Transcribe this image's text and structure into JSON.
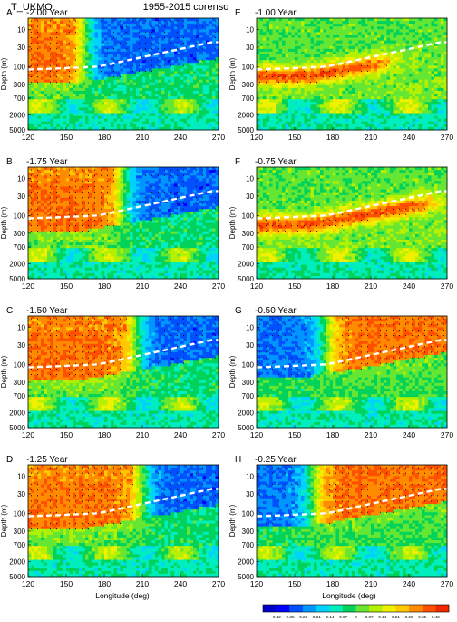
{
  "header": {
    "left": "T_UKMO",
    "center": "1955-2015 corenso"
  },
  "chart_data": {
    "type": "heatmap",
    "panels": [
      {
        "letter": "A",
        "label": "-2.00 Year",
        "warm": "west",
        "front": 165
      },
      {
        "letter": "B",
        "label": "-1.75 Year",
        "warm": "west",
        "front": 195
      },
      {
        "letter": "C",
        "label": "-1.50 Year",
        "warm": "west",
        "front": 205
      },
      {
        "letter": "D",
        "label": "-1.25 Year",
        "warm": "west",
        "front": 210
      },
      {
        "letter": "E",
        "label": "-1.00 Year",
        "warm": "thermocline",
        "front": 225
      },
      {
        "letter": "F",
        "label": "-0.75 Year",
        "warm": "thermocline",
        "front": 260
      },
      {
        "letter": "G",
        "label": "-0.50 Year",
        "warm": "east",
        "front": 175
      },
      {
        "letter": "H",
        "label": "-0.25 Year",
        "warm": "east",
        "front": 165
      }
    ],
    "x_ticks": [
      "120",
      "150",
      "180",
      "210",
      "240",
      "270"
    ],
    "x_values": [
      120,
      150,
      180,
      210,
      240,
      270
    ],
    "xlim": [
      120,
      270
    ],
    "y_ticks": [
      "10",
      "30",
      "100",
      "300",
      "700",
      "2000",
      "5000"
    ],
    "y_values": [
      10,
      30,
      100,
      300,
      700,
      2000,
      5000
    ],
    "xlabel": "Longitude (deg)",
    "ylabel": "Depth (m)",
    "colorbar": {
      "labels": [
        "-0.42",
        "-0.35",
        "-0.28",
        "-0.21",
        "-0.14",
        "-0.07",
        "0",
        "0.07",
        "0.14",
        "0.21",
        "0.28",
        "0.35",
        "0.42"
      ],
      "colors": [
        "#0000c8",
        "#0000ff",
        "#0050ff",
        "#0096ff",
        "#00d2ff",
        "#00eebe",
        "#00d25a",
        "#64e632",
        "#b4f000",
        "#f0f000",
        "#ffc800",
        "#ff8c00",
        "#ff5000",
        "#f02800"
      ]
    }
  }
}
